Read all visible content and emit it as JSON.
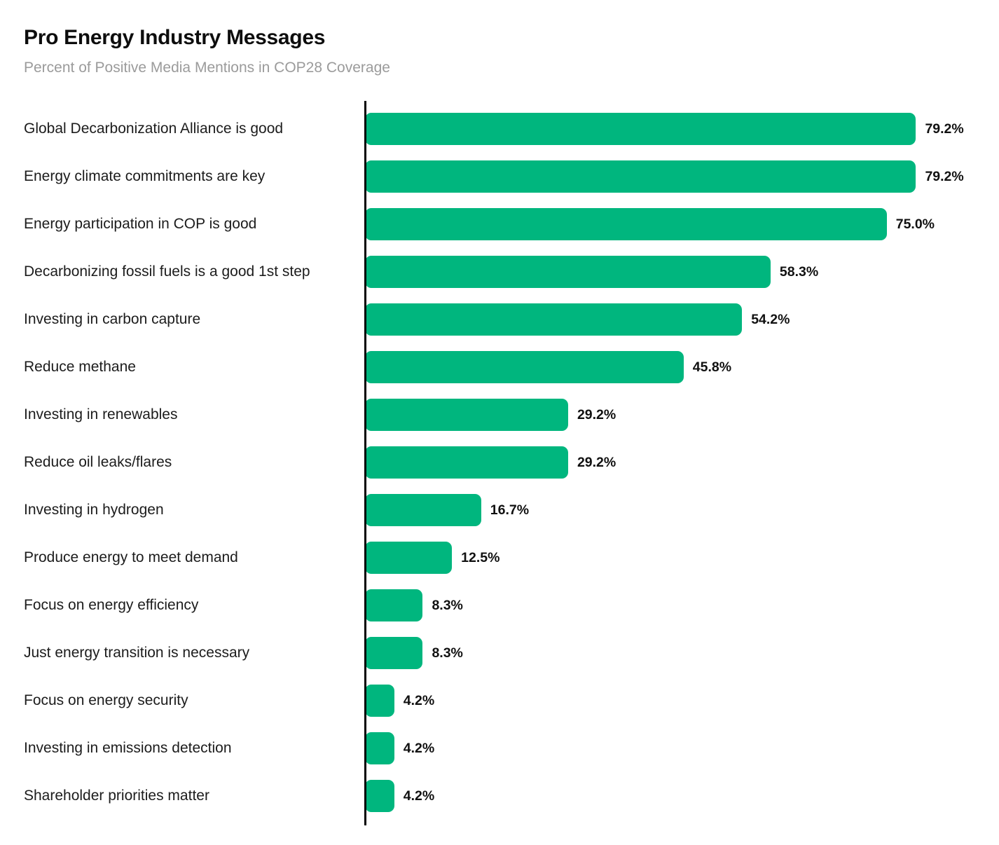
{
  "header": {
    "title": "Pro Energy Industry Messages",
    "subtitle": "Percent of Positive Media Mentions in COP28 Coverage"
  },
  "chart_data": {
    "type": "bar",
    "orientation": "horizontal",
    "title": "Pro Energy Industry Messages",
    "subtitle": "Percent of Positive Media Mentions in COP28 Coverage",
    "xlabel": "",
    "ylabel": "",
    "grid": false,
    "legend": false,
    "bar_color": "#00b67e",
    "axis_color": "#000000",
    "categories": [
      "Global Decarbonization Alliance is good",
      "Energy climate commitments are key",
      "Energy participation in COP is good",
      "Decarbonizing fossil fuels is a good 1st step",
      "Investing in carbon capture",
      "Reduce methane",
      "Investing in renewables",
      "Reduce oil leaks/flares",
      "Investing in hydrogen",
      "Produce energy to meet demand",
      "Focus on energy efficiency",
      "Just energy transition is necessary",
      "Focus on energy security",
      "Investing in emissions detection",
      "Shareholder priorities matter"
    ],
    "values": [
      79.2,
      79.2,
      75.0,
      58.3,
      54.2,
      45.8,
      29.2,
      29.2,
      16.7,
      12.5,
      8.3,
      8.3,
      4.2,
      4.2,
      4.2
    ],
    "value_labels": [
      "79.2%",
      "79.2%",
      "75.0%",
      "58.3%",
      "54.2%",
      "45.8%",
      "29.2%",
      "29.2%",
      "16.7%",
      "12.5%",
      "8.3%",
      "8.3%",
      "4.2%",
      "4.2%",
      "4.2%"
    ]
  }
}
